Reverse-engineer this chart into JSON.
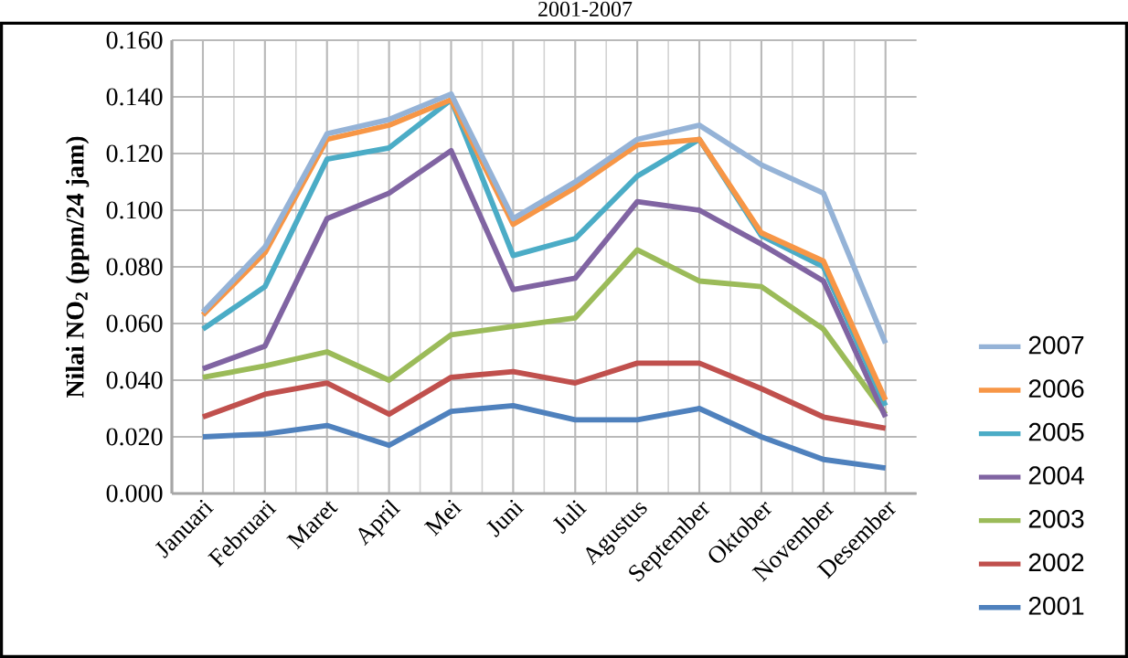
{
  "chart_data": {
    "type": "line",
    "title": "2001-2007",
    "ylabel": "Nilai NO$_{2}$ (ppm/24 jam)",
    "categories": [
      "Januari",
      "Februari",
      "Maret",
      "April",
      "Mei",
      "Juni",
      "Juli",
      "Agustus",
      "September",
      "Oktober",
      "November",
      "Desember"
    ],
    "series": [
      {
        "name": "2001",
        "color": "#4f81bd",
        "values": [
          0.02,
          0.021,
          0.024,
          0.017,
          0.029,
          0.031,
          0.026,
          0.026,
          0.03,
          0.02,
          0.012,
          0.009
        ]
      },
      {
        "name": "2002",
        "color": "#c0504d",
        "values": [
          0.027,
          0.035,
          0.039,
          0.028,
          0.041,
          0.043,
          0.039,
          0.046,
          0.046,
          0.037,
          0.027,
          0.023
        ]
      },
      {
        "name": "2003",
        "color": "#9bbb59",
        "values": [
          0.041,
          0.045,
          0.05,
          0.04,
          0.056,
          0.059,
          0.062,
          0.086,
          0.075,
          0.073,
          0.058,
          0.028
        ]
      },
      {
        "name": "2004",
        "color": "#8064a2",
        "values": [
          0.044,
          0.052,
          0.097,
          0.106,
          0.121,
          0.072,
          0.076,
          0.103,
          0.1,
          0.088,
          0.075,
          0.027
        ]
      },
      {
        "name": "2005",
        "color": "#4bacc6",
        "values": [
          0.058,
          0.073,
          0.118,
          0.122,
          0.139,
          0.084,
          0.09,
          0.112,
          0.125,
          0.091,
          0.08,
          0.031
        ]
      },
      {
        "name": "2006",
        "color": "#f79646",
        "values": [
          0.063,
          0.085,
          0.125,
          0.13,
          0.139,
          0.095,
          0.108,
          0.123,
          0.125,
          0.092,
          0.082,
          0.033
        ]
      },
      {
        "name": "2007",
        "color": "#95b3d7",
        "values": [
          0.064,
          0.087,
          0.127,
          0.132,
          0.141,
          0.097,
          0.11,
          0.125,
          0.13,
          0.116,
          0.106,
          0.053
        ]
      }
    ],
    "ylim": [
      0,
      0.16
    ],
    "yticks": [
      {
        "value": 0,
        "label": "0.000"
      },
      {
        "value": 0.02,
        "label": "0.020"
      },
      {
        "value": 0.04,
        "label": "0.040"
      },
      {
        "value": 0.06,
        "label": "0.060"
      },
      {
        "value": 0.08,
        "label": "0.080"
      },
      {
        "value": 0.1,
        "label": "0.100"
      },
      {
        "value": 0.12,
        "label": "0.120"
      },
      {
        "value": 0.14,
        "label": "0.140"
      },
      {
        "value": 0.16,
        "label": "0.160"
      }
    ],
    "grid": true,
    "legend": "right",
    "marker": "none",
    "line_style": "solid"
  }
}
